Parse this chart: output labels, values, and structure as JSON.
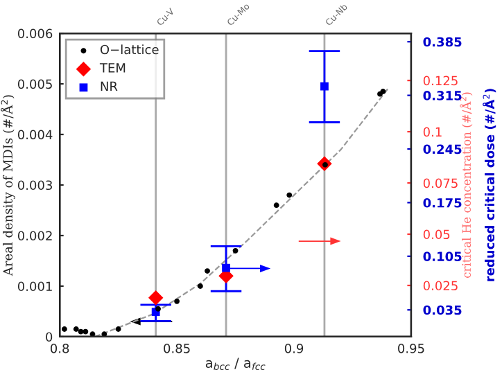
{
  "chart_data": {
    "type": "scatter",
    "xlabel": "a$_{bcc}$ / a$_{fcc}$",
    "ylabel": "Areal density of MDIs (#/Å$^{2}$)",
    "y2label": "critical He concentration (#/Å$^{2}$)",
    "y3label": "reduced critical dose (#/Å$^{2}$)",
    "xlim": [
      0.8,
      0.95
    ],
    "xticks": [
      0.8,
      0.85,
      0.9,
      0.95
    ],
    "ylim": [
      0,
      0.006
    ],
    "yticks": [
      0,
      0.001,
      0.002,
      0.003,
      0.004,
      0.005,
      0.006
    ],
    "y2lim": [
      0,
      0.148
    ],
    "y2ticks": [
      0.025,
      0.05,
      0.075,
      0.1,
      0.125
    ],
    "y3lim": [
      0,
      0.396
    ],
    "y3ticks": [
      0.035,
      0.105,
      0.175,
      0.245,
      0.315,
      0.385
    ],
    "legend": "top left",
    "grid": false,
    "ref_lines": [
      {
        "axis": "x",
        "value": 0.841,
        "label": "Cu-V",
        "color": "#aaaaaa"
      },
      {
        "axis": "x",
        "value": 0.871,
        "label": "Cu-Mo",
        "color": "#aaaaaa"
      },
      {
        "axis": "x",
        "value": 0.913,
        "label": "Cu-Nb",
        "color": "#aaaaaa"
      }
    ],
    "series": [
      {
        "type": "line",
        "color": "#999999",
        "line_style": "dashed",
        "marker": "none",
        "x": [
          0.815,
          0.84,
          0.86,
          0.88,
          0.9,
          0.92,
          0.94
        ],
        "values": [
          0,
          0.00045,
          0.00105,
          0.0019,
          0.0028,
          0.0037,
          0.0049
        ]
      },
      {
        "name": "O−lattice",
        "color": "#000000",
        "marker": "circle",
        "x": [
          0.802,
          0.807,
          0.809,
          0.811,
          0.814,
          0.819,
          0.825,
          0.842,
          0.85,
          0.86,
          0.863,
          0.875,
          0.8925,
          0.898,
          0.9133,
          0.9367,
          0.938
        ],
        "values": [
          0.00015,
          0.00015,
          0.0001,
          0.0001,
          5e-05,
          5e-05,
          0.00015,
          0.00055,
          0.0007,
          0.001,
          0.0013,
          0.0017,
          0.0026,
          0.0028,
          0.0034,
          0.0048,
          0.00485
        ]
      },
      {
        "name": "TEM",
        "type": "scatter",
        "color": "#ff0000",
        "marker": "diamond",
        "x": [
          0.841,
          0.871,
          0.913
        ],
        "values": [
          0.00077,
          0.0012,
          0.00342
        ]
      },
      {
        "name": "NR",
        "type": "scatter",
        "color": "#0000ff",
        "marker": "square",
        "x": [
          0.841,
          0.871,
          0.913
        ],
        "values": [
          0.00049,
          0.00136,
          0.00495
        ],
        "errors": [
          [
            0.00031,
            0.00063
          ],
          [
            0.0009,
            0.00179
          ],
          [
            0.00424,
            0.00565
          ]
        ]
      }
    ]
  }
}
